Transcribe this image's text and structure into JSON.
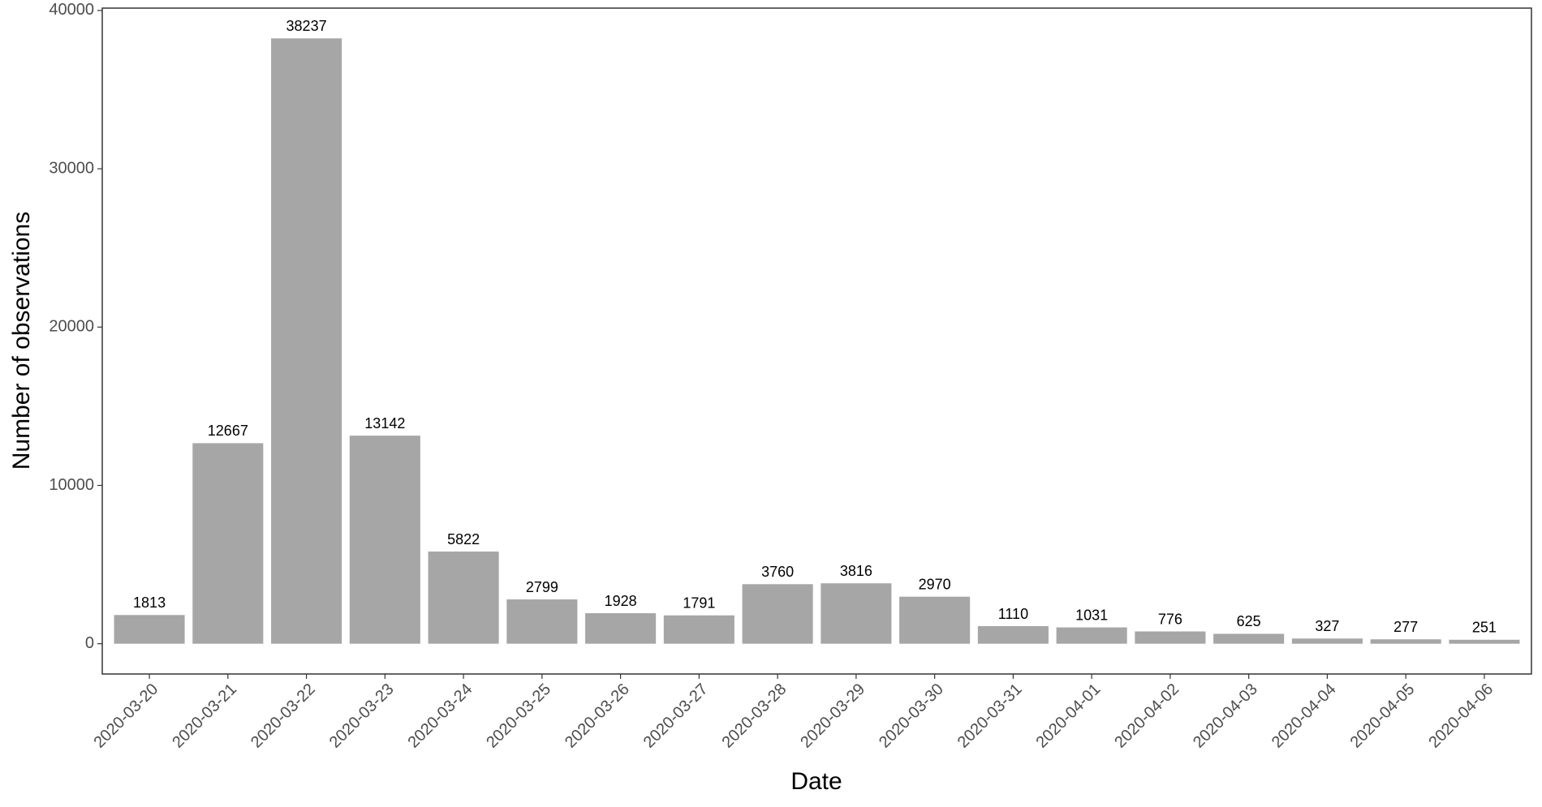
{
  "chart_data": {
    "type": "bar",
    "x_label": "Date",
    "y_label": "Number of observations",
    "categories": [
      "2020-03-20",
      "2020-03-21",
      "2020-03-22",
      "2020-03-23",
      "2020-03-24",
      "2020-03-25",
      "2020-03-26",
      "2020-03-27",
      "2020-03-28",
      "2020-03-29",
      "2020-03-30",
      "2020-03-31",
      "2020-04-01",
      "2020-04-02",
      "2020-04-03",
      "2020-04-04",
      "2020-04-05",
      "2020-04-06"
    ],
    "values": [
      1813,
      12667,
      38237,
      13142,
      5822,
      2799,
      1928,
      1791,
      3760,
      3816,
      2970,
      1110,
      1031,
      776,
      625,
      327,
      277,
      251
    ],
    "color": "#a6a6a6",
    "ylim": [
      -1912,
      40149
    ],
    "yticks": [
      0,
      10000,
      20000,
      30000,
      40000
    ],
    "grid": false
  }
}
